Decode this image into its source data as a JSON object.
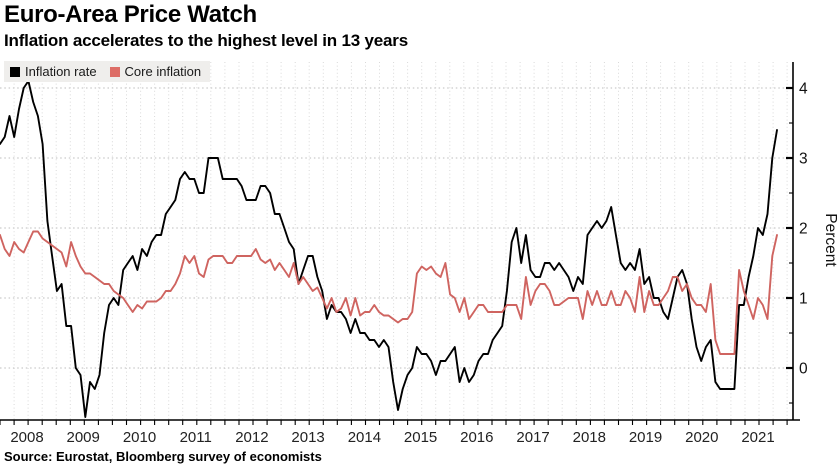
{
  "header": {
    "title": "Euro-Area Price Watch",
    "subtitle": "Inflation accelerates to the highest level in 13 years"
  },
  "source": {
    "text": "Source: Eurostat, Bloomberg survey of economists"
  },
  "legend": {
    "items": [
      {
        "label": "Inflation rate",
        "color": "#000000"
      },
      {
        "label": "Core inflation",
        "color": "#dd6d66"
      }
    ]
  },
  "y_axis": {
    "label": "Percent",
    "ticks": [
      0,
      1,
      2,
      3,
      4
    ],
    "minor_tick_step": 0.5,
    "range": [
      -0.74,
      4.37
    ],
    "side": "right"
  },
  "x_axis": {
    "years": [
      "2008",
      "2009",
      "2010",
      "2011",
      "2012",
      "2013",
      "2014",
      "2015",
      "2016",
      "2017",
      "2018",
      "2019",
      "2020",
      "2021"
    ],
    "minor_ticks": "quarterly"
  },
  "chart_data": {
    "type": "line",
    "title": "Euro-Area Price Watch",
    "subtitle": "Inflation accelerates to the highest level in 13 years",
    "frequency": "monthly",
    "x_start": "2008-01",
    "x_end": "2021-09",
    "ylabel": "Percent",
    "ylim": [
      -0.74,
      4.37
    ],
    "grid": "dotted",
    "legend_position": "top-left",
    "series": [
      {
        "name": "Inflation rate",
        "color": "#000000",
        "values": [
          3.2,
          3.3,
          3.6,
          3.3,
          3.7,
          4.0,
          4.1,
          3.8,
          3.6,
          3.2,
          2.1,
          1.6,
          1.1,
          1.2,
          0.6,
          0.6,
          0.0,
          -0.1,
          -0.7,
          -0.2,
          -0.3,
          -0.1,
          0.5,
          0.9,
          1.0,
          0.9,
          1.4,
          1.5,
          1.6,
          1.4,
          1.7,
          1.6,
          1.8,
          1.9,
          1.9,
          2.2,
          2.3,
          2.4,
          2.7,
          2.8,
          2.7,
          2.7,
          2.5,
          2.5,
          3.0,
          3.0,
          3.0,
          2.7,
          2.7,
          2.7,
          2.7,
          2.6,
          2.4,
          2.4,
          2.4,
          2.6,
          2.6,
          2.5,
          2.2,
          2.2,
          2.0,
          1.8,
          1.7,
          1.2,
          1.4,
          1.6,
          1.6,
          1.3,
          1.1,
          0.7,
          0.9,
          0.8,
          0.8,
          0.7,
          0.5,
          0.7,
          0.5,
          0.5,
          0.4,
          0.4,
          0.3,
          0.4,
          0.3,
          -0.2,
          -0.6,
          -0.3,
          -0.1,
          0.0,
          0.3,
          0.2,
          0.2,
          0.1,
          -0.1,
          0.1,
          0.1,
          0.2,
          0.3,
          -0.2,
          0.0,
          -0.2,
          -0.1,
          0.1,
          0.2,
          0.2,
          0.4,
          0.5,
          0.6,
          1.1,
          1.8,
          2.0,
          1.5,
          1.9,
          1.4,
          1.3,
          1.3,
          1.5,
          1.5,
          1.4,
          1.5,
          1.4,
          1.3,
          1.1,
          1.3,
          1.2,
          1.9,
          2.0,
          2.1,
          2.0,
          2.1,
          2.3,
          1.9,
          1.5,
          1.4,
          1.5,
          1.4,
          1.7,
          1.2,
          1.3,
          1.0,
          1.0,
          0.8,
          0.7,
          1.0,
          1.3,
          1.4,
          1.2,
          0.7,
          0.3,
          0.1,
          0.3,
          0.4,
          -0.2,
          -0.3,
          -0.3,
          -0.3,
          -0.3,
          0.9,
          0.9,
          1.3,
          1.6,
          2.0,
          1.9,
          2.2,
          3.0,
          3.4
        ]
      },
      {
        "name": "Core inflation",
        "color": "#cf6460",
        "values": [
          1.9,
          1.7,
          1.6,
          1.8,
          1.7,
          1.65,
          1.8,
          1.95,
          1.95,
          1.85,
          1.8,
          1.75,
          1.7,
          1.65,
          1.45,
          1.8,
          1.6,
          1.45,
          1.35,
          1.35,
          1.3,
          1.25,
          1.2,
          1.2,
          1.1,
          1.05,
          1.0,
          0.9,
          0.8,
          0.9,
          0.85,
          0.95,
          0.95,
          0.95,
          1.0,
          1.1,
          1.1,
          1.2,
          1.35,
          1.6,
          1.5,
          1.6,
          1.35,
          1.3,
          1.55,
          1.6,
          1.6,
          1.6,
          1.5,
          1.5,
          1.6,
          1.6,
          1.6,
          1.6,
          1.7,
          1.55,
          1.5,
          1.55,
          1.4,
          1.5,
          1.4,
          1.3,
          1.5,
          1.2,
          1.3,
          1.2,
          1.1,
          1.15,
          1.0,
          0.85,
          1.0,
          0.8,
          0.85,
          1.0,
          0.75,
          1.0,
          0.75,
          0.8,
          0.8,
          0.9,
          0.8,
          0.75,
          0.75,
          0.7,
          0.65,
          0.7,
          0.7,
          0.8,
          1.35,
          1.45,
          1.4,
          1.45,
          1.35,
          1.3,
          1.5,
          1.05,
          1.0,
          0.8,
          1.0,
          0.7,
          0.8,
          0.9,
          0.9,
          0.8,
          0.8,
          0.8,
          0.8,
          0.9,
          0.9,
          0.9,
          0.7,
          1.3,
          0.9,
          1.1,
          1.2,
          1.2,
          1.1,
          0.9,
          0.9,
          0.95,
          1.0,
          1.0,
          1.0,
          0.7,
          1.1,
          0.9,
          1.1,
          0.9,
          0.9,
          1.1,
          0.9,
          0.9,
          1.1,
          1.0,
          0.8,
          1.3,
          0.8,
          1.1,
          0.9,
          0.9,
          1.0,
          1.1,
          1.3,
          1.3,
          1.1,
          1.2,
          1.0,
          0.9,
          0.9,
          0.8,
          1.2,
          0.4,
          0.2,
          0.2,
          0.2,
          0.2,
          1.4,
          1.1,
          0.9,
          0.7,
          1.0,
          0.9,
          0.7,
          1.6,
          1.9
        ]
      }
    ]
  }
}
